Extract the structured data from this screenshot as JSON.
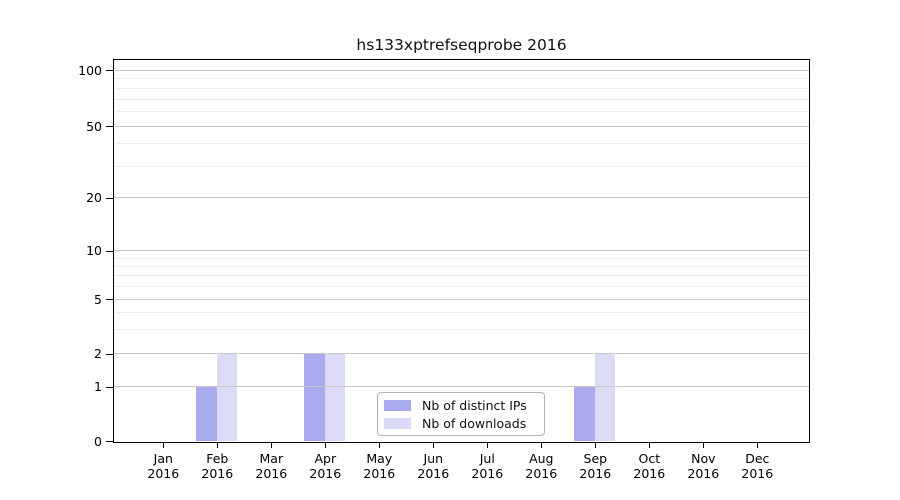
{
  "title": "hs133xptrefseqprobe 2016",
  "chart_data": {
    "type": "bar",
    "title": "hs133xptrefseqprobe 2016",
    "categories": [
      "Jan 2016",
      "Feb 2016",
      "Mar 2016",
      "Apr 2016",
      "May 2016",
      "Jun 2016",
      "Jul 2016",
      "Aug 2016",
      "Sep 2016",
      "Oct 2016",
      "Nov 2016",
      "Dec 2016"
    ],
    "x_tick_month": [
      "Jan",
      "Feb",
      "Mar",
      "Apr",
      "May",
      "Jun",
      "Jul",
      "Aug",
      "Sep",
      "Oct",
      "Nov",
      "Dec"
    ],
    "x_tick_year": "2016",
    "series": [
      {
        "name": "Nb of distinct IPs",
        "color": "#aaaaf0",
        "values": [
          0,
          1,
          0,
          2,
          0,
          0,
          0,
          0,
          1,
          0,
          0,
          0
        ]
      },
      {
        "name": "Nb of downloads",
        "color": "#dbdbf8",
        "values": [
          0,
          2,
          0,
          2,
          0,
          0,
          0,
          0,
          2,
          0,
          0,
          0
        ]
      }
    ],
    "y_ticks": [
      0,
      1,
      2,
      5,
      10,
      20,
      50,
      100
    ],
    "y_minor_ticks": [
      3,
      4,
      6,
      7,
      8,
      9,
      30,
      40,
      60,
      70,
      80,
      90
    ],
    "ylim": [
      0,
      100
    ],
    "yscale": "symlog",
    "grid": true,
    "legend_position": "lower center-left",
    "colors": {
      "grid_major": "#c9c9c9",
      "grid_minor": "#ededed",
      "spine": "#000000",
      "text": "#000000"
    }
  }
}
